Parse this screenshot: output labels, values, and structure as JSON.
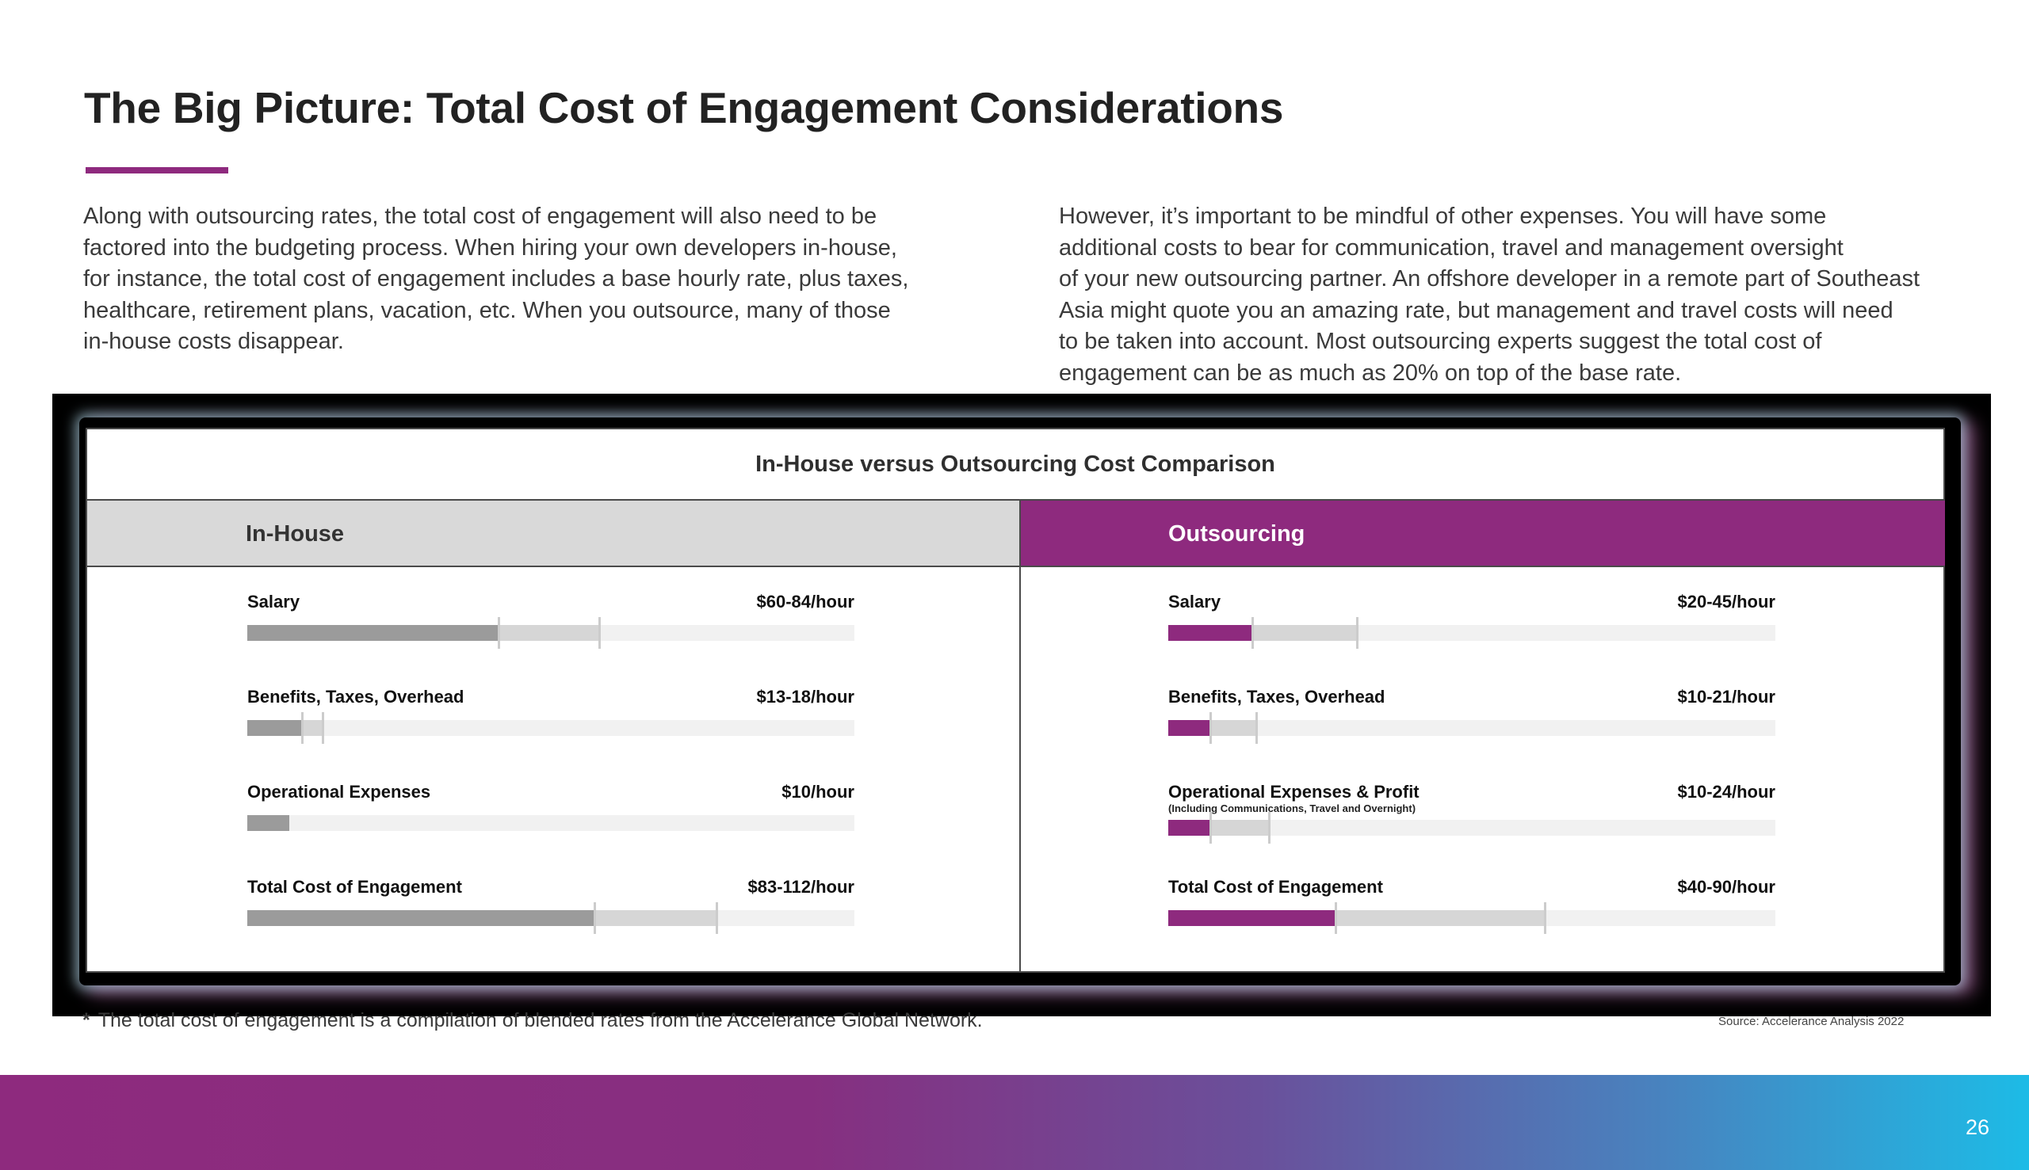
{
  "slide": {
    "title": "The Big Picture: Total Cost of Engagement Considerations",
    "accent_color": "#8e2a7e",
    "page_number": "26"
  },
  "intro": {
    "left_lines": [
      "Along with outsourcing rates, the total cost of engagement will also need to be",
      "factored into the budgeting process. When hiring your own developers in-house,",
      "for instance, the total cost of engagement includes a base hourly rate, plus taxes,",
      "healthcare, retirement plans, vacation, etc. When you outsource, many of those",
      "in-house costs disappear."
    ],
    "right_lines": [
      "However, it’s important to be mindful of other expenses. You will have some",
      "additional costs to bear for communication, travel and management oversight",
      "of your new outsourcing partner. An offshore developer in a remote part of Southeast",
      "Asia might quote you an amazing rate, but management and travel costs will need",
      "to be taken into account. Most outsourcing experts suggest the total cost of",
      "engagement can be as much as 20% on top of the base rate."
    ]
  },
  "comparison": {
    "title": "In-House versus Outsourcing Cost Comparison",
    "in_house": {
      "heading": "In-House",
      "bar_color": "#9b9b9b",
      "rows": [
        {
          "label": "Salary",
          "sublabel": "",
          "value": "$60-84/hour",
          "low": 60,
          "high": 84
        },
        {
          "label": "Benefits, Taxes, Overhead",
          "sublabel": "",
          "value": "$13-18/hour",
          "low": 13,
          "high": 18
        },
        {
          "label": "Operational Expenses",
          "sublabel": "",
          "value": "$10/hour",
          "low": 10,
          "high": 10
        },
        {
          "label": "Total Cost of Engagement",
          "sublabel": "",
          "value": "$83-112/hour",
          "low": 83,
          "high": 112
        }
      ]
    },
    "outsourcing": {
      "heading": "Outsourcing",
      "bar_color": "#8e2a7e",
      "rows": [
        {
          "label": "Salary",
          "sublabel": "",
          "value": "$20-45/hour",
          "low": 20,
          "high": 45
        },
        {
          "label": "Benefits, Taxes, Overhead",
          "sublabel": "",
          "value": "$10-21/hour",
          "low": 10,
          "high": 21
        },
        {
          "label": "Operational Expenses & Profit",
          "sublabel": "(Including Communications, Travel and Overnight)",
          "value": "$10-24/hour",
          "low": 10,
          "high": 24
        },
        {
          "label": "Total Cost of Engagement",
          "sublabel": "",
          "value": "$40-90/hour",
          "low": 40,
          "high": 90
        }
      ]
    },
    "scale_max": 145
  },
  "footnote": {
    "marker": "*",
    "text": "The total cost of engagement is a compilation of blended rates from the Accelerance Global Network.",
    "source": "Source: Accelerance Analysis 2022"
  }
}
